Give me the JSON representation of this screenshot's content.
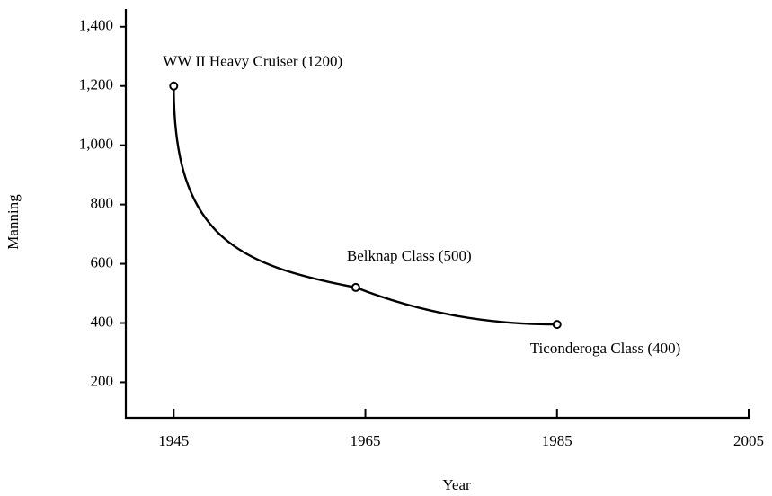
{
  "chart_data": {
    "type": "line",
    "x_label": "Year",
    "y_label": "Manning",
    "x": [
      1945,
      1964,
      1985
    ],
    "series": [
      {
        "name": "Manning",
        "color": "#000000",
        "values": [
          1200,
          520,
          395
        ]
      }
    ],
    "annotations": [
      "WW II Heavy Cruiser (1200)",
      "Belknap Class (500)",
      "Ticonderoga Class (400)"
    ],
    "xlim": [
      1940,
      2005
    ],
    "xticks": [
      1945,
      1965,
      1985,
      2005
    ],
    "ylim": [
      80,
      1460
    ],
    "yticks": [
      200,
      400,
      600,
      800,
      {
        "value": 1000,
        "label": "1,000"
      },
      {
        "value": 1200,
        "label": "1,200"
      },
      {
        "value": 1400,
        "label": "1,400"
      }
    ],
    "grid": false
  }
}
